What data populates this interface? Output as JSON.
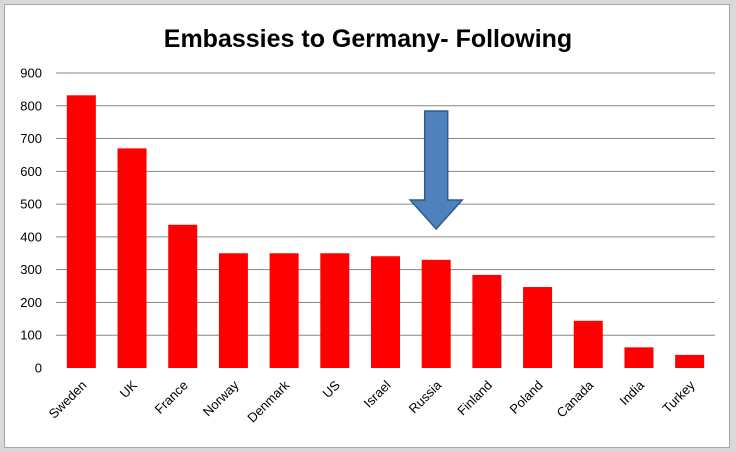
{
  "chart_data": {
    "type": "bar",
    "title": "Embassies to Germany- Following",
    "xlabel": "",
    "ylabel": "",
    "categories": [
      "Sweden",
      "UK",
      "France",
      "Norway",
      "Denmark",
      "US",
      "Israel",
      "Russia",
      "Finland",
      "Poland",
      "Canada",
      "India",
      "Turkey"
    ],
    "values": [
      832,
      670,
      437,
      350,
      350,
      350,
      341,
      330,
      284,
      247,
      144,
      63,
      40
    ],
    "ylim": [
      0,
      900
    ],
    "yticks": [
      0,
      100,
      200,
      300,
      400,
      500,
      600,
      700,
      800,
      900
    ],
    "grid": true,
    "legend": "none",
    "bar_color": "#ff0000",
    "annotation": {
      "type": "down-arrow",
      "category": "Russia",
      "color": "#4f81bd"
    }
  },
  "colors": {
    "background": "#ffffff",
    "frame": "#d9d9d9",
    "gridline": "#868686",
    "arrow_fill": "#4f81bd",
    "arrow_stroke": "#2e5a8c"
  }
}
